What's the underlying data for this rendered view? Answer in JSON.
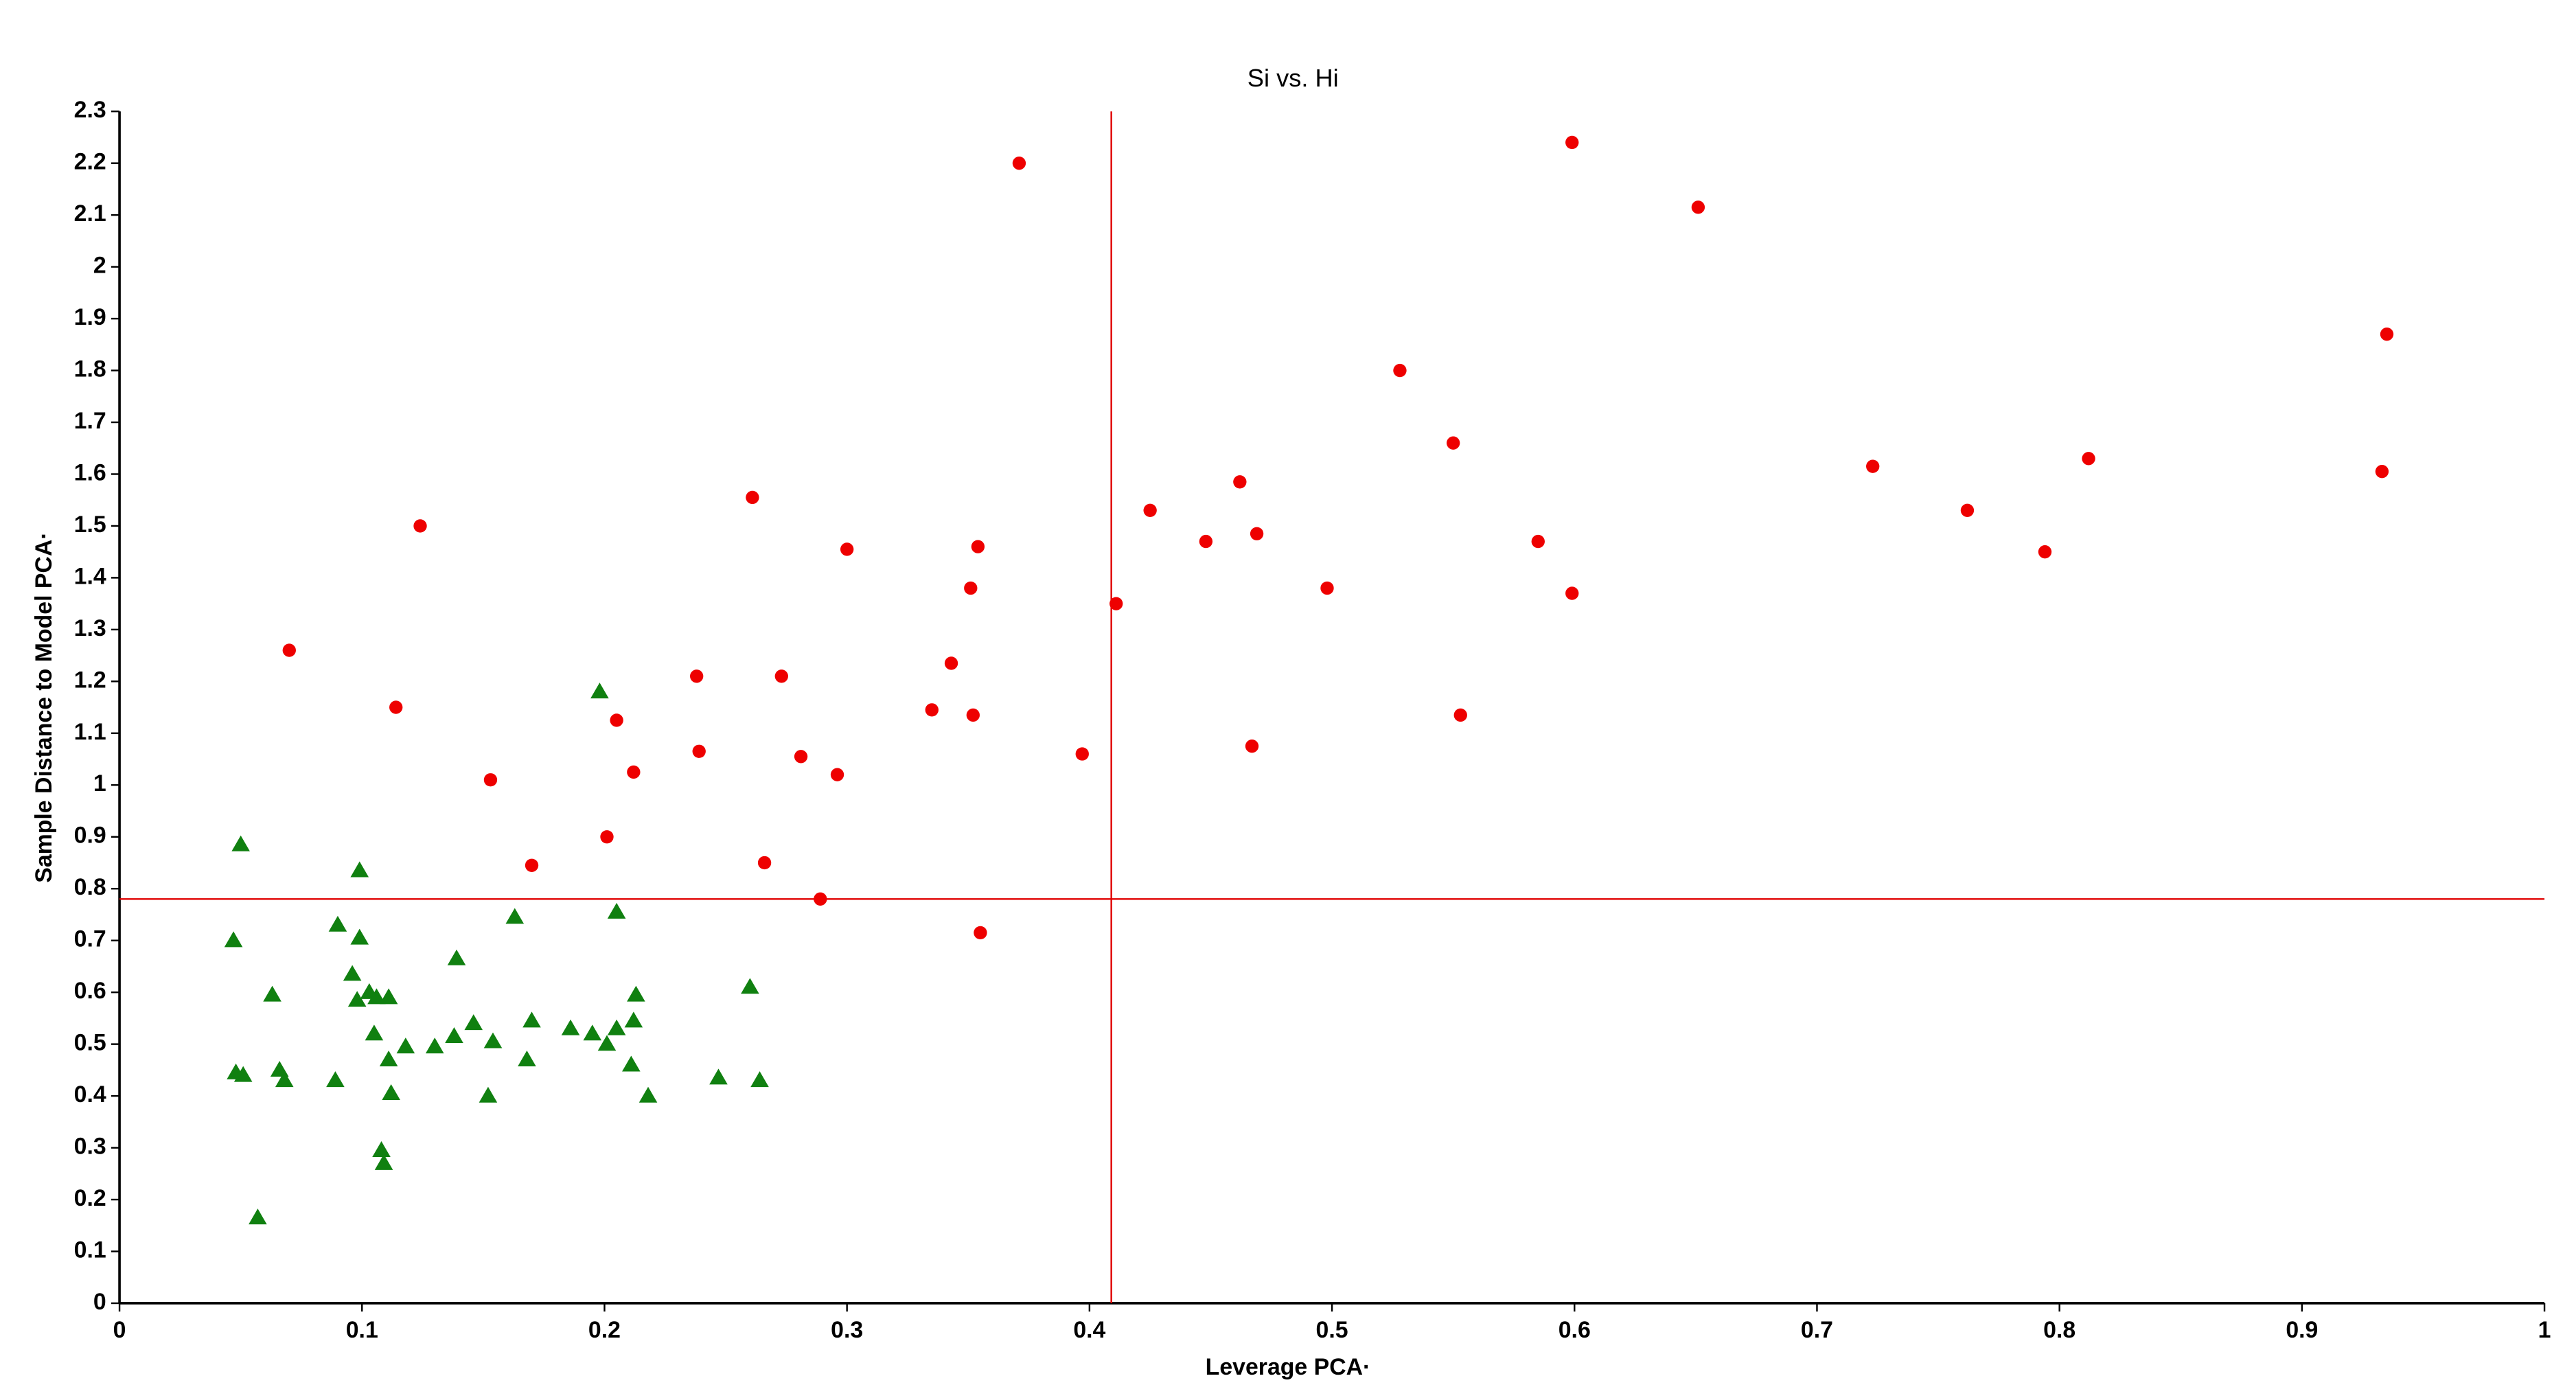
{
  "chart_data": {
    "type": "scatter",
    "title": "Si vs. Hi",
    "x_label": "Leverage PCA·",
    "y_label": "Sample Distance to Model  PCA·",
    "xlim": [
      0,
      1
    ],
    "ylim": [
      0,
      2.3
    ],
    "xticks": [
      0,
      0.1,
      0.2,
      0.3,
      0.4,
      0.5,
      0.6,
      0.7,
      0.8,
      0.9,
      1
    ],
    "yticks": [
      0,
      0.1,
      0.2,
      0.3,
      0.4,
      0.5,
      0.6,
      0.7,
      0.8,
      0.9,
      1,
      1.1,
      1.2,
      1.3,
      1.4,
      1.5,
      1.6,
      1.7,
      1.8,
      1.9,
      2,
      2.1,
      2.2,
      2.3
    ],
    "reference_lines": {
      "x": 0.409,
      "y": 0.78,
      "color": "#e00000"
    },
    "series": [
      {
        "color": "#ee0000",
        "marker": "circle",
        "x": [
          0.371,
          0.599,
          0.651,
          0.935,
          0.528,
          0.55,
          0.723,
          0.812,
          0.933,
          0.462,
          0.762,
          0.425,
          0.261,
          0.124,
          0.448,
          0.469,
          0.585,
          0.794,
          0.3,
          0.354,
          0.351,
          0.498,
          0.599,
          0.411,
          0.07,
          0.343,
          0.238,
          0.273,
          0.114,
          0.335,
          0.205,
          0.352,
          0.553,
          0.467,
          0.239,
          0.397,
          0.281,
          0.212,
          0.296,
          0.153,
          0.201,
          0.266,
          0.17,
          0.289,
          0.355
        ],
        "values": [
          2.2,
          2.24,
          2.115,
          1.87,
          1.8,
          1.66,
          1.615,
          1.63,
          1.605,
          1.585,
          1.53,
          1.53,
          1.555,
          1.5,
          1.47,
          1.485,
          1.47,
          1.45,
          1.455,
          1.46,
          1.38,
          1.38,
          1.37,
          1.35,
          1.26,
          1.235,
          1.21,
          1.21,
          1.15,
          1.145,
          1.125,
          1.135,
          1.135,
          1.075,
          1.065,
          1.06,
          1.055,
          1.025,
          1.02,
          1.01,
          0.9,
          0.85,
          0.845,
          0.78,
          0.715
        ]
      },
      {
        "color": "#108010",
        "marker": "triangle",
        "x": [
          0.05,
          0.099,
          0.198,
          0.047,
          0.09,
          0.099,
          0.163,
          0.205,
          0.139,
          0.096,
          0.063,
          0.098,
          0.103,
          0.106,
          0.111,
          0.26,
          0.213,
          0.146,
          0.17,
          0.212,
          0.105,
          0.138,
          0.186,
          0.195,
          0.205,
          0.154,
          0.201,
          0.118,
          0.13,
          0.111,
          0.168,
          0.211,
          0.048,
          0.051,
          0.066,
          0.068,
          0.089,
          0.247,
          0.264,
          0.112,
          0.152,
          0.218,
          0.108,
          0.109,
          0.057
        ],
        "values": [
          0.885,
          0.835,
          1.18,
          0.7,
          0.73,
          0.705,
          0.745,
          0.755,
          0.665,
          0.635,
          0.595,
          0.585,
          0.6,
          0.59,
          0.59,
          0.61,
          0.595,
          0.54,
          0.545,
          0.545,
          0.52,
          0.515,
          0.53,
          0.52,
          0.53,
          0.505,
          0.5,
          0.495,
          0.495,
          0.47,
          0.47,
          0.46,
          0.445,
          0.44,
          0.45,
          0.43,
          0.43,
          0.435,
          0.43,
          0.405,
          0.4,
          0.4,
          0.295,
          0.27,
          0.165
        ]
      }
    ]
  }
}
